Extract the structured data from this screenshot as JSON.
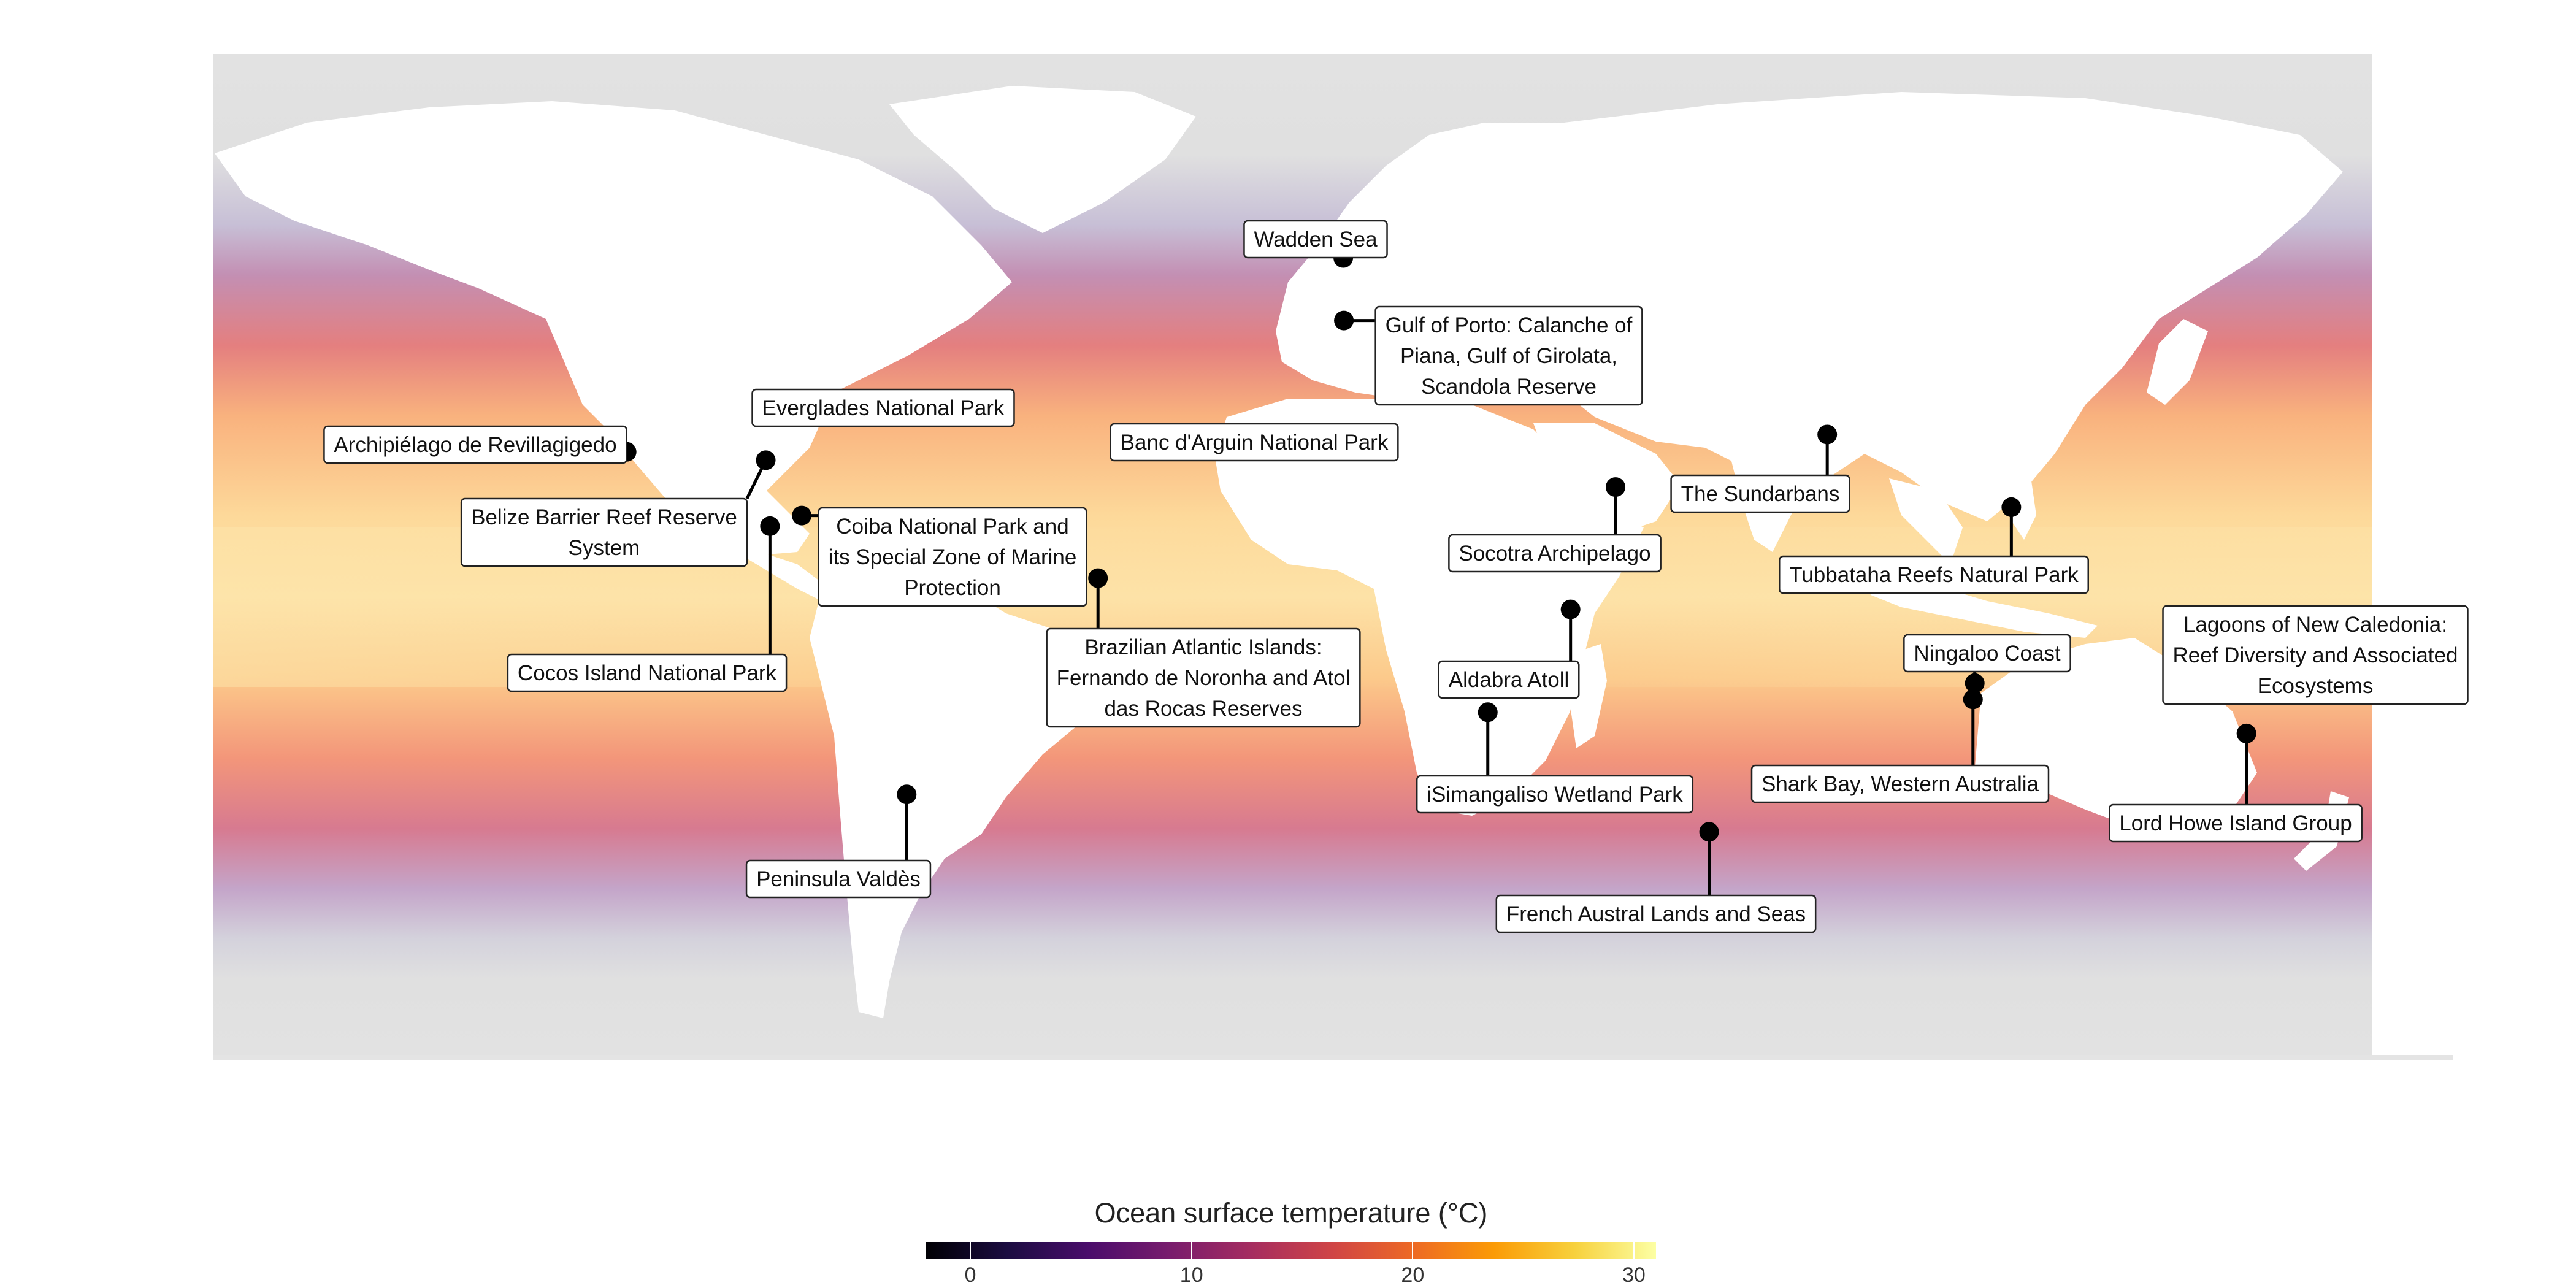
{
  "legend": {
    "title": "Ocean surface temperature (°C)",
    "min": -2,
    "max": 31,
    "ticks": [
      0,
      10,
      20,
      30
    ]
  },
  "colors": {
    "land": "#ffffff",
    "ice_cold_sea": "#e0e0e0",
    "scale": [
      "#000004",
      "#1b0c41",
      "#4a0c6b",
      "#781c6d",
      "#a52c60",
      "#cf4446",
      "#ed6925",
      "#fb9b06",
      "#f7d13d",
      "#fcffa4"
    ]
  },
  "sites": [
    {
      "name": "Wadden Sea",
      "lines": [
        "Wadden Sea"
      ],
      "lon": 8.5,
      "lat": 53.5
    },
    {
      "name": "Gulf of Porto: Calanche of Piana, Gulf of Girolata, Scandola Reserve",
      "lines": [
        "Gulf of Porto: Calanche of",
        "Piana, Gulf of Girolata,",
        "Scandola Reserve"
      ],
      "lon": 8.6,
      "lat": 42.3
    },
    {
      "name": "Everglades National Park",
      "lines": [
        "Everglades National Park"
      ],
      "lon": -80.9,
      "lat": 25.3
    },
    {
      "name": "Archipiélago de Revillagigedo",
      "lines": [
        "Archipiélago de Revillagigedo"
      ],
      "lon": -111.0,
      "lat": 18.8
    },
    {
      "name": "Belize Barrier Reef Reserve System",
      "lines": [
        "Belize Barrier Reef Reserve",
        "System"
      ],
      "lon": -87.8,
      "lat": 17.3
    },
    {
      "name": "Coiba National Park and its Special Zone of Marine Protection",
      "lines": [
        "Coiba National Park and",
        "its Special Zone of Marine",
        "Protection"
      ],
      "lon": -81.8,
      "lat": 7.4
    },
    {
      "name": "Cocos Island National Park",
      "lines": [
        "Cocos Island National Park"
      ],
      "lon": -87.1,
      "lat": 5.5
    },
    {
      "name": "Banc d'Arguin National Park",
      "lines": [
        "Banc d'Arguin National Park"
      ],
      "lon": -16.4,
      "lat": 19.9
    },
    {
      "name": "Brazilian Atlantic Islands: Fernando de Noronha and Atol das Rocas Reserves",
      "lines": [
        "Brazilian Atlantic Islands:",
        "Fernando de Noronha and Atol",
        "das Rocas Reserves"
      ],
      "lon": -32.4,
      "lat": -3.8
    },
    {
      "name": "Peninsula Valdès",
      "lines": [
        "Peninsula Valdès"
      ],
      "lon": -64.3,
      "lat": -42.5
    },
    {
      "name": "The Sundarbans",
      "lines": [
        "The Sundarbans"
      ],
      "lon": 89.2,
      "lat": 21.9
    },
    {
      "name": "Socotra Archipelago",
      "lines": [
        "Socotra Archipelago"
      ],
      "lon": 53.9,
      "lat": 12.5
    },
    {
      "name": "Tubbataha Reefs Natural Park",
      "lines": [
        "Tubbataha Reefs Natural Park"
      ],
      "lon": 119.9,
      "lat": 8.9
    },
    {
      "name": "Aldabra Atoll",
      "lines": [
        "Aldabra Atoll"
      ],
      "lon": 46.4,
      "lat": -9.4
    },
    {
      "name": "Ningaloo Coast",
      "lines": [
        "Ningaloo Coast"
      ],
      "lon": 113.8,
      "lat": -22.6
    },
    {
      "name": "Lagoons of New Caledonia: Reef Diversity and Associated Ecosystems",
      "lines": [
        "Lagoons of New Caledonia:",
        "Reef Diversity and Associated",
        "Ecosystems"
      ],
      "lon": 165.5,
      "lat": -21.5
    },
    {
      "name": "Shark Bay, Western Australia",
      "lines": [
        "Shark Bay, Western Australia"
      ],
      "lon": 113.5,
      "lat": -25.5
    },
    {
      "name": "iSimangaliso Wetland Park",
      "lines": [
        "iSimangaliso Wetland Park"
      ],
      "lon": 32.6,
      "lat": -27.8
    },
    {
      "name": "Lord Howe Island Group",
      "lines": [
        "Lord Howe Island Group"
      ],
      "lon": 159.1,
      "lat": -31.6
    },
    {
      "name": "French Austral Lands and Seas",
      "lines": [
        "French Austral Lands and Seas"
      ],
      "lon": 69.5,
      "lat": -49.2
    }
  ]
}
